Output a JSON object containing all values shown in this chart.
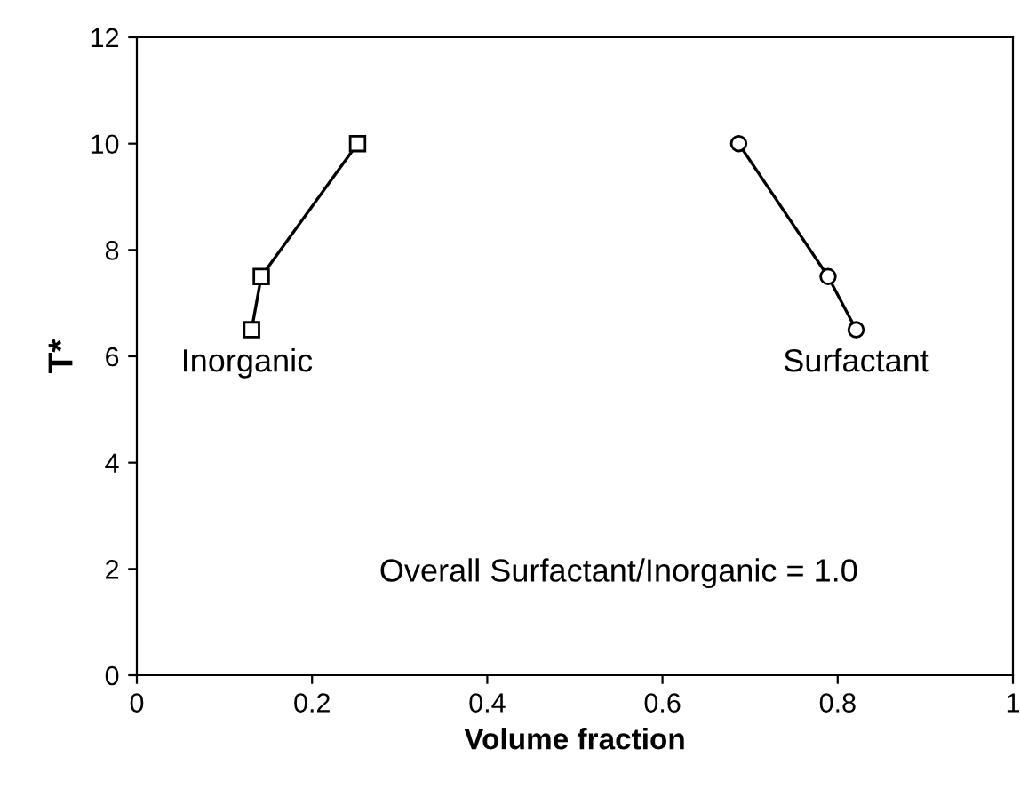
{
  "chart_data": {
    "type": "line",
    "xlabel": "Volume fraction",
    "ylabel": "T*",
    "xlim": [
      0,
      1
    ],
    "xticks": [
      0,
      0.2,
      0.4,
      0.6,
      0.8,
      1
    ],
    "ylim": [
      0,
      12
    ],
    "yticks": [
      0,
      2,
      4,
      6,
      8,
      10,
      12
    ],
    "series": [
      {
        "name": "Inorganic",
        "color": "#000000",
        "marker": "square",
        "x": [
          0.131,
          0.142,
          0.252
        ],
        "values": [
          6.5,
          7.5,
          10
        ]
      },
      {
        "name": "Surfactant",
        "color": "#000000",
        "marker": "circle",
        "x": [
          0.687,
          0.789,
          0.821
        ],
        "values": [
          10,
          7.5,
          6.5
        ]
      }
    ],
    "annotations": [
      "Overall Surfactant/Inorganic = 1.0"
    ],
    "grid": false,
    "legend": false,
    "line_style": "solid"
  }
}
